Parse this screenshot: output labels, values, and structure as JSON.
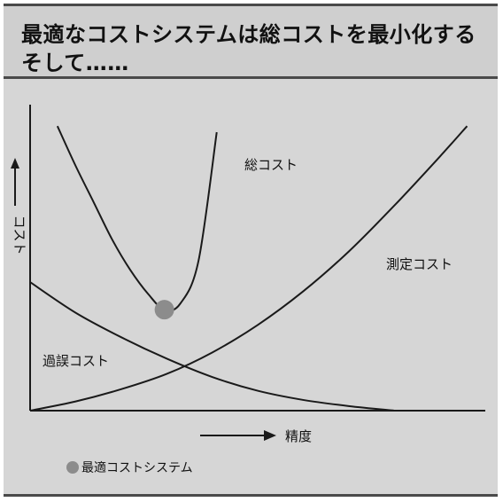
{
  "title": {
    "line1": "最適なコストシステムは総コストを最小化する",
    "line2": "そして……"
  },
  "colors": {
    "background": "#d6d6d6",
    "line": "#1a1a1a",
    "marker": "#8c8c8c"
  },
  "chart_data": {
    "type": "line",
    "title": "最適なコストシステムは総コストを最小化する そして……",
    "xlabel": "精度",
    "ylabel": "コスト",
    "xlim": [
      0,
      10
    ],
    "ylim": [
      0,
      10
    ],
    "grid": false,
    "axis_ticks": false,
    "series": [
      {
        "name": "総コスト",
        "x": [
          0.6,
          1.0,
          1.4,
          1.8,
          2.2,
          2.6,
          2.95,
          3.3,
          3.7,
          4.1
        ],
        "values": [
          9.3,
          8.0,
          6.8,
          5.6,
          4.6,
          3.8,
          3.3,
          3.5,
          4.9,
          9.1
        ]
      },
      {
        "name": "測定コスト",
        "x": [
          0,
          1,
          2,
          3,
          4,
          5,
          6,
          7,
          8,
          9,
          9.6
        ],
        "values": [
          0.0,
          0.3,
          0.7,
          1.2,
          1.9,
          2.8,
          3.9,
          5.2,
          6.7,
          8.3,
          9.3
        ]
      },
      {
        "name": "過誤コスト",
        "x": [
          0,
          1,
          2,
          3,
          4,
          5,
          6,
          7,
          8
        ],
        "values": [
          4.2,
          3.2,
          2.4,
          1.7,
          1.1,
          0.65,
          0.35,
          0.15,
          0.0
        ]
      }
    ],
    "optimum_point": {
      "x": 2.95,
      "y": 3.3
    },
    "legend": {
      "label": "最適コストシステム",
      "placement": "bottom-left"
    }
  }
}
